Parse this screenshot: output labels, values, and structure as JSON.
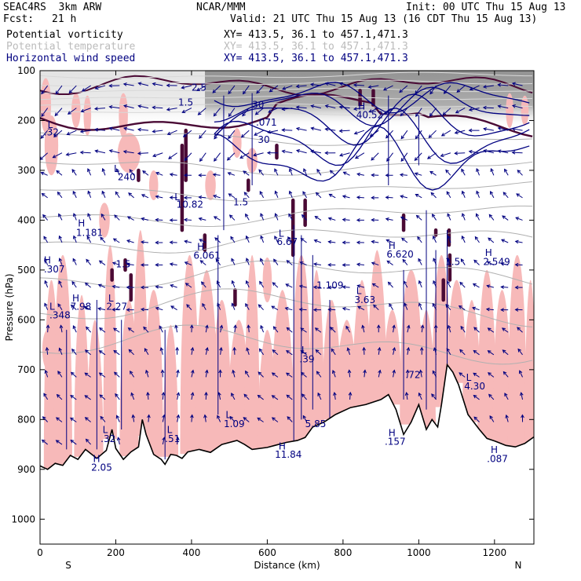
{
  "header": {
    "project": "SEAC4RS  3km ARW",
    "fcst_label": "Fcst:",
    "fcst_value": "21 h",
    "org": "NCAR/MMM",
    "init": "Init: 00 UTC Thu 15 Aug 13",
    "valid": "Valid: 21 UTC Thu 15 Aug 13 (16 CDT Thu 15 Aug 13)"
  },
  "fields": [
    {
      "name": "Potential vorticity",
      "xy": "XY= 413.5, 36.1 to 457.1,471.3",
      "color": "#000000"
    },
    {
      "name": "Potential temperature",
      "xy": "XY= 413.5, 36.1 to 457.1,471.3",
      "color": "#bbbbbb"
    },
    {
      "name": "Horizontal wind speed",
      "xy": "XY= 413.5, 36.1 to 457.1,471.3",
      "color": "#000080"
    }
  ],
  "colors": {
    "pv_fill": "#f7b9b9",
    "pv_strong": "#4a0a35",
    "theta": "#b0b0b0",
    "wind": "#000080",
    "terrain": "#000000"
  },
  "chart_data": {
    "type": "cross-section",
    "title": "",
    "xlabel": "Distance (km)",
    "ylabel": "Pressure (hPa)",
    "xlim": [
      0,
      1304
    ],
    "ylim": [
      1050,
      100
    ],
    "xticks": [
      0,
      200,
      400,
      600,
      800,
      1000,
      1200
    ],
    "yticks": [
      100,
      200,
      300,
      400,
      500,
      600,
      700,
      800,
      900,
      1000
    ],
    "x_end_labels": {
      "left": "S",
      "right": "N"
    },
    "terrain": [
      [
        0,
        893
      ],
      [
        20,
        900
      ],
      [
        40,
        888
      ],
      [
        60,
        892
      ],
      [
        80,
        872
      ],
      [
        100,
        880
      ],
      [
        120,
        860
      ],
      [
        150,
        878
      ],
      [
        175,
        862
      ],
      [
        190,
        820
      ],
      [
        200,
        858
      ],
      [
        220,
        880
      ],
      [
        240,
        865
      ],
      [
        260,
        855
      ],
      [
        270,
        800
      ],
      [
        280,
        830
      ],
      [
        300,
        870
      ],
      [
        320,
        880
      ],
      [
        330,
        890
      ],
      [
        345,
        870
      ],
      [
        360,
        872
      ],
      [
        375,
        878
      ],
      [
        390,
        865
      ],
      [
        420,
        860
      ],
      [
        450,
        866
      ],
      [
        480,
        850
      ],
      [
        520,
        842
      ],
      [
        540,
        850
      ],
      [
        560,
        860
      ],
      [
        600,
        856
      ],
      [
        620,
        852
      ],
      [
        650,
        846
      ],
      [
        680,
        842
      ],
      [
        700,
        836
      ],
      [
        720,
        815
      ],
      [
        750,
        805
      ],
      [
        780,
        790
      ],
      [
        820,
        776
      ],
      [
        860,
        770
      ],
      [
        900,
        760
      ],
      [
        920,
        750
      ],
      [
        940,
        780
      ],
      [
        960,
        830
      ],
      [
        980,
        805
      ],
      [
        1000,
        770
      ],
      [
        1020,
        820
      ],
      [
        1035,
        800
      ],
      [
        1050,
        815
      ],
      [
        1060,
        770
      ],
      [
        1075,
        690
      ],
      [
        1090,
        705
      ],
      [
        1105,
        730
      ],
      [
        1130,
        790
      ],
      [
        1160,
        820
      ],
      [
        1180,
        838
      ],
      [
        1200,
        843
      ],
      [
        1230,
        852
      ],
      [
        1255,
        855
      ],
      [
        1280,
        848
      ],
      [
        1304,
        835
      ]
    ],
    "extrema_labels": [
      {
        "text": ".32",
        "x": 10,
        "p": 230
      },
      {
        "text": "L",
        "x": 20,
        "p": 215
      },
      {
        "text": "240",
        "x": 205,
        "p": 320
      },
      {
        "text": "L",
        "x": 195,
        "p": 303
      },
      {
        "text": "10.82",
        "x": 360,
        "p": 375
      },
      {
        "text": "L",
        "x": 355,
        "p": 360
      },
      {
        "text": "1.181",
        "x": 95,
        "p": 432
      },
      {
        "text": "H",
        "x": 100,
        "p": 413
      },
      {
        "text": ".307",
        "x": 10,
        "p": 505
      },
      {
        "text": "H",
        "x": 10,
        "p": 487
      },
      {
        "text": "1.5",
        "x": 200,
        "p": 495
      },
      {
        "text": "6.061",
        "x": 405,
        "p": 477
      },
      {
        "text": "H",
        "x": 415,
        "p": 460
      },
      {
        "text": "7.98",
        "x": 80,
        "p": 580
      },
      {
        "text": "H",
        "x": 85,
        "p": 563
      },
      {
        "text": "2.27",
        "x": 175,
        "p": 580
      },
      {
        "text": "L",
        "x": 180,
        "p": 563
      },
      {
        "text": ".348",
        "x": 25,
        "p": 597
      },
      {
        "text": "L",
        "x": 25,
        "p": 580
      },
      {
        "text": "1.5",
        "x": 510,
        "p": 370
      },
      {
        "text": "6.67",
        "x": 625,
        "p": 450
      },
      {
        "text": "L",
        "x": 630,
        "p": 433
      },
      {
        "text": "1.109",
        "x": 730,
        "p": 537
      },
      {
        "text": "3.63",
        "x": 830,
        "p": 566
      },
      {
        "text": "L",
        "x": 835,
        "p": 548
      },
      {
        "text": "6.620",
        "x": 915,
        "p": 475
      },
      {
        "text": "H",
        "x": 920,
        "p": 458
      },
      {
        "text": "1.5",
        "x": 1070,
        "p": 490
      },
      {
        "text": "2.549",
        "x": 1170,
        "p": 490
      },
      {
        "text": "H",
        "x": 1175,
        "p": 472
      },
      {
        "text": "40.52",
        "x": 835,
        "p": 195
      },
      {
        "text": "H",
        "x": 840,
        "p": 178
      },
      {
        "text": "1.5",
        "x": 365,
        "p": 170
      },
      {
        "text": "2.5",
        "x": 400,
        "p": 140
      },
      {
        "text": ".39",
        "x": 685,
        "p": 685
      },
      {
        "text": "L",
        "x": 690,
        "p": 667
      },
      {
        "text": ".72",
        "x": 965,
        "p": 717
      },
      {
        "text": "4.30",
        "x": 1120,
        "p": 740
      },
      {
        "text": "L",
        "x": 1125,
        "p": 722
      },
      {
        "text": "1.09",
        "x": 485,
        "p": 815
      },
      {
        "text": "L",
        "x": 490,
        "p": 797
      },
      {
        "text": "5.85",
        "x": 700,
        "p": 815
      },
      {
        "text": "11.84",
        "x": 620,
        "p": 877
      },
      {
        "text": "H",
        "x": 630,
        "p": 860
      },
      {
        "text": ".157",
        "x": 910,
        "p": 851
      },
      {
        "text": "H",
        "x": 920,
        "p": 833
      },
      {
        "text": ".32",
        "x": 160,
        "p": 845
      },
      {
        "text": "L",
        "x": 165,
        "p": 827
      },
      {
        "text": ".51",
        "x": 330,
        "p": 845
      },
      {
        "text": "L",
        "x": 335,
        "p": 827
      },
      {
        "text": "2.05",
        "x": 135,
        "p": 903
      },
      {
        "text": "H",
        "x": 140,
        "p": 885
      },
      {
        "text": ".087",
        "x": 1180,
        "p": 885
      },
      {
        "text": "H",
        "x": 1190,
        "p": 867
      },
      {
        "text": "30",
        "x": 560,
        "p": 175
      },
      {
        "text": ".071",
        "x": 570,
        "p": 210
      },
      {
        "text": "30",
        "x": 575,
        "p": 245
      }
    ]
  }
}
